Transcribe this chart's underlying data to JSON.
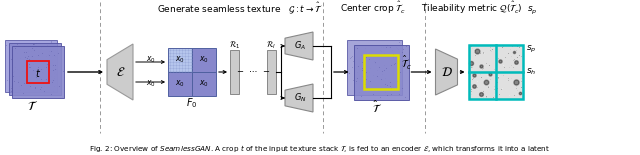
{
  "fig_width": 6.4,
  "fig_height": 1.55,
  "dpi": 100,
  "bg_color": "#ffffff",
  "colors": {
    "blue_dark": "#7070c8",
    "blue_mid": "#8888cc",
    "blue_light": "#aaaadd",
    "blue_lighter": "#c0c8f0",
    "gray_shape": "#cccccc",
    "gray_dark": "#aaaaaa",
    "red_crop": "#ee1111",
    "yellow_rect": "#dddd00",
    "cyan_grid": "#00bbbb",
    "black": "#000000",
    "white": "#ffffff",
    "sep_color": "#999999"
  }
}
